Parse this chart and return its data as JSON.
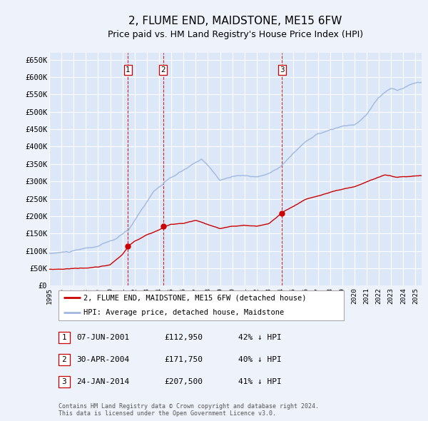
{
  "title": "2, FLUME END, MAIDSTONE, ME15 6FW",
  "subtitle": "Price paid vs. HM Land Registry's House Price Index (HPI)",
  "title_fontsize": 11,
  "subtitle_fontsize": 9,
  "ylabel_ticks": [
    "£0",
    "£50K",
    "£100K",
    "£150K",
    "£200K",
    "£250K",
    "£300K",
    "£350K",
    "£400K",
    "£450K",
    "£500K",
    "£550K",
    "£600K",
    "£650K"
  ],
  "ytick_values": [
    0,
    50000,
    100000,
    150000,
    200000,
    250000,
    300000,
    350000,
    400000,
    450000,
    500000,
    550000,
    600000,
    650000
  ],
  "ylim": [
    0,
    670000
  ],
  "xlim_start": 1995.0,
  "xlim_end": 2025.5,
  "sale_prices": [
    112950,
    171750,
    207500
  ],
  "sale_labels": [
    "1",
    "2",
    "3"
  ],
  "sale_date_years": [
    2001.44,
    2004.33,
    2014.07
  ],
  "background_color": "#eef2fb",
  "plot_bg_color": "#dce8f8",
  "grid_color": "#ffffff",
  "hpi_line_color": "#a0b8e0",
  "sale_line_color": "#cc0000",
  "sale_marker_color": "#cc0000",
  "vline_color": "#cc0000",
  "legend_sale_label": "2, FLUME END, MAIDSTONE, ME15 6FW (detached house)",
  "legend_hpi_label": "HPI: Average price, detached house, Maidstone",
  "table_rows": [
    {
      "label": "1",
      "date": "07-JUN-2001",
      "price": "£112,950",
      "hpi": "42% ↓ HPI"
    },
    {
      "label": "2",
      "date": "30-APR-2004",
      "price": "£171,750",
      "hpi": "40% ↓ HPI"
    },
    {
      "label": "3",
      "date": "24-JAN-2014",
      "price": "£207,500",
      "hpi": "41% ↓ HPI"
    }
  ],
  "footnote": "Contains HM Land Registry data © Crown copyright and database right 2024.\nThis data is licensed under the Open Government Licence v3.0.",
  "xtick_years": [
    1995,
    1996,
    1997,
    1998,
    1999,
    2000,
    2001,
    2002,
    2003,
    2004,
    2005,
    2006,
    2007,
    2008,
    2009,
    2010,
    2011,
    2012,
    2013,
    2014,
    2015,
    2016,
    2017,
    2018,
    2019,
    2020,
    2021,
    2022,
    2023,
    2024,
    2025
  ]
}
